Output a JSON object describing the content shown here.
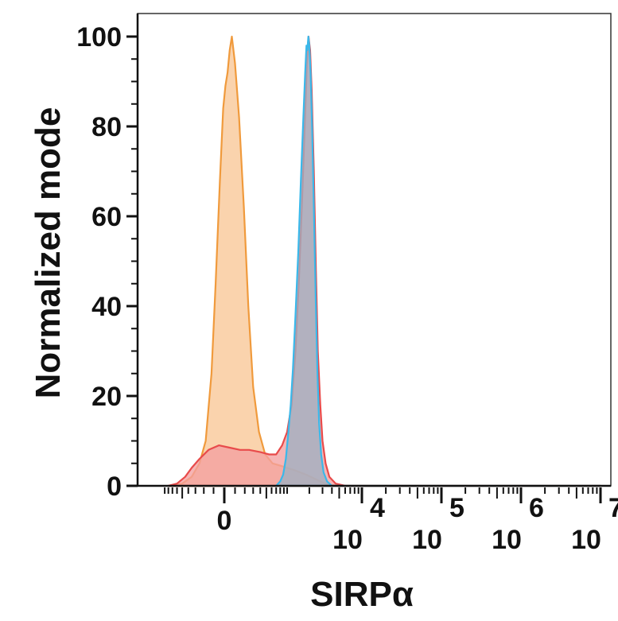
{
  "chart_data": {
    "type": "area",
    "xlabel": "SIRPα",
    "ylabel": "Normalized mode",
    "x_scale": "biexponential",
    "ylim": [
      0,
      100
    ],
    "y_ticks": [
      {
        "value": 0,
        "label": "0"
      },
      {
        "value": 20,
        "label": "20"
      },
      {
        "value": 40,
        "label": "40"
      },
      {
        "value": 60,
        "label": "60"
      },
      {
        "value": 80,
        "label": "80"
      },
      {
        "value": 100,
        "label": "100"
      }
    ],
    "x_ticks": [
      {
        "value": 0,
        "base": "0",
        "exp": ""
      },
      {
        "value": 10000,
        "base": "10",
        "exp": "4"
      },
      {
        "value": 100000,
        "base": "10",
        "exp": "5"
      },
      {
        "value": 1000000,
        "base": "10",
        "exp": "6"
      },
      {
        "value": 10000000,
        "base": "10",
        "exp": "7"
      }
    ],
    "grid": false,
    "legend": "none",
    "series": [
      {
        "color": "#f09a3c",
        "fill": "#f9c696",
        "points": [
          [
            -800,
            0
          ],
          [
            -500,
            0.5
          ],
          [
            -350,
            2
          ],
          [
            -250,
            5
          ],
          [
            -180,
            10
          ],
          [
            -120,
            25
          ],
          [
            -80,
            45
          ],
          [
            -40,
            68
          ],
          [
            -10,
            84
          ],
          [
            10,
            89
          ],
          [
            30,
            92
          ],
          [
            50,
            97
          ],
          [
            70,
            100
          ],
          [
            100,
            94
          ],
          [
            140,
            82
          ],
          [
            190,
            62
          ],
          [
            240,
            40
          ],
          [
            300,
            22
          ],
          [
            380,
            12
          ],
          [
            480,
            7
          ],
          [
            620,
            5
          ],
          [
            800,
            4.5
          ],
          [
            1000,
            4
          ],
          [
            1250,
            3.5
          ],
          [
            1500,
            3
          ],
          [
            1800,
            2.5
          ],
          [
            2100,
            2
          ],
          [
            2400,
            1.5
          ],
          [
            2800,
            1
          ],
          [
            3300,
            0.4
          ],
          [
            4000,
            0.1
          ],
          [
            5500,
            0
          ],
          [
            10000000,
            0
          ]
        ]
      },
      {
        "color": "#e84b4b",
        "fill": "#f4a0a0",
        "points": [
          [
            -800,
            0
          ],
          [
            -600,
            0.5
          ],
          [
            -450,
            2
          ],
          [
            -350,
            4
          ],
          [
            -250,
            6
          ],
          [
            -150,
            8
          ],
          [
            -50,
            9
          ],
          [
            50,
            8.5
          ],
          [
            150,
            8
          ],
          [
            250,
            8
          ],
          [
            400,
            7.5
          ],
          [
            550,
            7
          ],
          [
            700,
            7
          ],
          [
            850,
            9
          ],
          [
            1000,
            12
          ],
          [
            1150,
            18
          ],
          [
            1300,
            30
          ],
          [
            1450,
            46
          ],
          [
            1600,
            64
          ],
          [
            1750,
            82
          ],
          [
            1850,
            94
          ],
          [
            1950,
            100
          ],
          [
            2050,
            97
          ],
          [
            2150,
            88
          ],
          [
            2300,
            70
          ],
          [
            2450,
            48
          ],
          [
            2600,
            30
          ],
          [
            2800,
            18
          ],
          [
            3000,
            10
          ],
          [
            3300,
            5
          ],
          [
            3700,
            2
          ],
          [
            4500,
            0.5
          ],
          [
            6000,
            0
          ],
          [
            10000000,
            0
          ]
        ]
      },
      {
        "color": "#3ab8ea",
        "fill": "#9fb0c2",
        "points": [
          [
            700,
            0
          ],
          [
            800,
            1
          ],
          [
            880,
            2.5
          ],
          [
            960,
            6
          ],
          [
            1040,
            12
          ],
          [
            1120,
            18
          ],
          [
            1200,
            26
          ],
          [
            1300,
            38
          ],
          [
            1420,
            52
          ],
          [
            1540,
            68
          ],
          [
            1660,
            82
          ],
          [
            1760,
            92
          ],
          [
            1830,
            98
          ],
          [
            1880,
            97
          ],
          [
            1940,
            100
          ],
          [
            2000,
            98
          ],
          [
            2080,
            92
          ],
          [
            2180,
            80
          ],
          [
            2300,
            62
          ],
          [
            2430,
            42
          ],
          [
            2560,
            26
          ],
          [
            2700,
            14
          ],
          [
            2880,
            7
          ],
          [
            3100,
            3
          ],
          [
            3450,
            1
          ],
          [
            4000,
            0
          ],
          [
            10000000,
            0
          ]
        ]
      }
    ]
  }
}
